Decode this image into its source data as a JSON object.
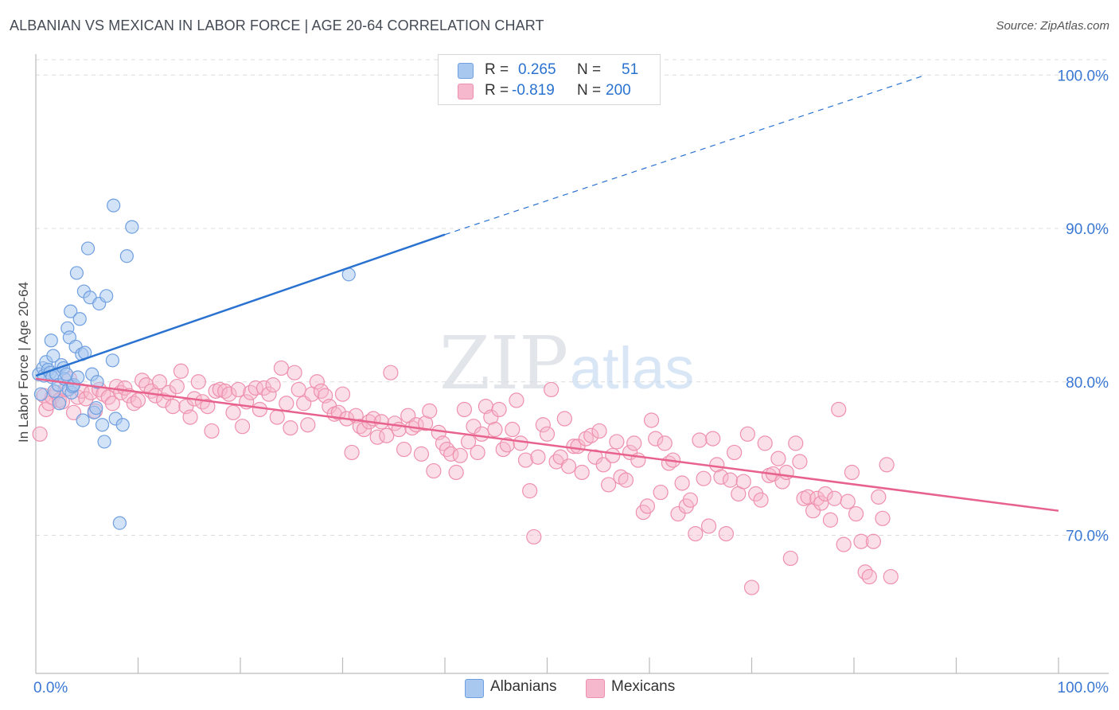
{
  "title": "ALBANIAN VS MEXICAN IN LABOR FORCE | AGE 20-64 CORRELATION CHART",
  "source": "Source: ZipAtlas.com",
  "watermark": {
    "zip": "ZIP",
    "atlas": "atlas"
  },
  "legend": {
    "r_label": "R =",
    "n_label": "N =",
    "albanians": {
      "r": "0.265",
      "n": "51"
    },
    "mexicans": {
      "r": "-0.819",
      "n": "200"
    }
  },
  "colors": {
    "albanian_fill": "#a8c8f0",
    "albanian_stroke": "#6f9fe0",
    "albanian_line": "#2a72d0",
    "mexican_fill": "#f6b8cc",
    "mexican_stroke": "#ee90ae",
    "mexican_line": "#e8628e",
    "axis_tick_text": "#3a78d4"
  },
  "chart_data": {
    "type": "scatter",
    "title": "ALBANIAN VS MEXICAN IN LABOR FORCE | AGE 20-64 CORRELATION CHART",
    "xlabel": "",
    "ylabel": "In Labor Force | Age 20-64",
    "xlim": [
      0,
      100
    ],
    "ylim": [
      61,
      101
    ],
    "x_tick_labels": [
      "0.0%",
      "100.0%"
    ],
    "y_ticks": [
      70,
      80,
      90,
      100
    ],
    "y_tick_labels": [
      "70.0%",
      "80.0%",
      "90.0%",
      "100.0%"
    ],
    "grid": "horizontal dashed",
    "legend_position": "bottom-center",
    "series": [
      {
        "name": "Albanians",
        "R": 0.265,
        "N": 51,
        "trend": {
          "x": [
            0,
            40
          ],
          "y": [
            80.4,
            89.6
          ],
          "dashed_to": [
            87,
            100
          ]
        },
        "points": [
          [
            0.3,
            80.5
          ],
          [
            0.5,
            79.2
          ],
          [
            0.7,
            80.9
          ],
          [
            0.8,
            80.4
          ],
          [
            1.0,
            81.3
          ],
          [
            1.2,
            80.8
          ],
          [
            1.4,
            80.6
          ],
          [
            1.5,
            82.7
          ],
          [
            1.6,
            80.3
          ],
          [
            1.7,
            81.7
          ],
          [
            1.8,
            79.4
          ],
          [
            2.0,
            80.5
          ],
          [
            2.2,
            79.8
          ],
          [
            2.3,
            78.6
          ],
          [
            2.5,
            81.1
          ],
          [
            2.7,
            80.9
          ],
          [
            2.8,
            80.2
          ],
          [
            3.0,
            80.5
          ],
          [
            3.1,
            83.5
          ],
          [
            3.2,
            79.5
          ],
          [
            3.3,
            82.9
          ],
          [
            3.4,
            84.6
          ],
          [
            3.5,
            79.3
          ],
          [
            3.6,
            79.7
          ],
          [
            3.7,
            79.8
          ],
          [
            3.9,
            82.3
          ],
          [
            4.0,
            87.1
          ],
          [
            4.1,
            80.3
          ],
          [
            4.3,
            84.1
          ],
          [
            4.5,
            81.8
          ],
          [
            4.6,
            77.5
          ],
          [
            4.7,
            85.9
          ],
          [
            4.8,
            81.9
          ],
          [
            5.1,
            88.7
          ],
          [
            5.3,
            85.5
          ],
          [
            5.5,
            80.5
          ],
          [
            5.7,
            78.0
          ],
          [
            5.9,
            78.3
          ],
          [
            6.0,
            80.0
          ],
          [
            6.2,
            85.1
          ],
          [
            6.5,
            77.2
          ],
          [
            6.7,
            76.1
          ],
          [
            6.9,
            85.6
          ],
          [
            7.5,
            81.4
          ],
          [
            7.6,
            91.5
          ],
          [
            7.8,
            77.6
          ],
          [
            8.2,
            70.8
          ],
          [
            8.5,
            77.2
          ],
          [
            8.9,
            88.2
          ],
          [
            9.4,
            90.1
          ],
          [
            30.6,
            87.0
          ]
        ]
      },
      {
        "name": "Mexicans",
        "R": -0.819,
        "N": 200,
        "trend": {
          "x": [
            0,
            100
          ],
          "y": [
            80.2,
            71.6
          ]
        },
        "points": [
          [
            0.4,
            76.6
          ],
          [
            0.8,
            79.1
          ],
          [
            1.0,
            78.2
          ],
          [
            1.3,
            78.6
          ],
          [
            1.6,
            79.0
          ],
          [
            2.0,
            79.3
          ],
          [
            2.3,
            78.8
          ],
          [
            2.6,
            78.7
          ],
          [
            2.9,
            79.5
          ],
          [
            3.3,
            80.2
          ],
          [
            3.7,
            78.0
          ],
          [
            4.1,
            79.0
          ],
          [
            4.5,
            79.4
          ],
          [
            4.9,
            78.9
          ],
          [
            5.4,
            79.3
          ],
          [
            5.8,
            78.1
          ],
          [
            6.2,
            79.5
          ],
          [
            6.6,
            79.2
          ],
          [
            7.1,
            79.0
          ],
          [
            7.5,
            78.6
          ],
          [
            7.9,
            79.7
          ],
          [
            8.3,
            79.3
          ],
          [
            8.7,
            79.6
          ],
          [
            9.1,
            79.1
          ],
          [
            9.6,
            78.6
          ],
          [
            10.0,
            78.8
          ],
          [
            10.4,
            80.1
          ],
          [
            10.8,
            79.8
          ],
          [
            11.3,
            79.4
          ],
          [
            11.7,
            79.1
          ],
          [
            12.1,
            80.0
          ],
          [
            12.5,
            78.8
          ],
          [
            13.0,
            79.3
          ],
          [
            13.4,
            78.4
          ],
          [
            13.8,
            79.7
          ],
          [
            14.2,
            80.7
          ],
          [
            14.7,
            78.4
          ],
          [
            15.1,
            77.7
          ],
          [
            15.5,
            78.9
          ],
          [
            15.9,
            80.0
          ],
          [
            16.3,
            78.7
          ],
          [
            16.8,
            78.4
          ],
          [
            17.2,
            76.8
          ],
          [
            17.6,
            79.4
          ],
          [
            18.0,
            79.5
          ],
          [
            18.5,
            79.4
          ],
          [
            18.9,
            79.2
          ],
          [
            19.3,
            78.0
          ],
          [
            19.8,
            79.5
          ],
          [
            20.2,
            77.1
          ],
          [
            20.6,
            78.7
          ],
          [
            21.0,
            79.3
          ],
          [
            21.5,
            79.6
          ],
          [
            21.9,
            78.2
          ],
          [
            22.3,
            79.6
          ],
          [
            22.8,
            79.2
          ],
          [
            23.2,
            79.8
          ],
          [
            23.6,
            77.7
          ],
          [
            24.0,
            80.9
          ],
          [
            24.5,
            78.6
          ],
          [
            24.9,
            77.0
          ],
          [
            25.3,
            80.6
          ],
          [
            25.7,
            79.5
          ],
          [
            26.2,
            78.6
          ],
          [
            26.6,
            77.2
          ],
          [
            27.0,
            79.2
          ],
          [
            27.5,
            80.0
          ],
          [
            27.9,
            79.4
          ],
          [
            28.3,
            79.1
          ],
          [
            28.7,
            78.4
          ],
          [
            29.2,
            77.9
          ],
          [
            29.6,
            78.0
          ],
          [
            30.0,
            79.2
          ],
          [
            30.4,
            77.6
          ],
          [
            30.9,
            75.4
          ],
          [
            31.3,
            77.8
          ],
          [
            31.7,
            77.1
          ],
          [
            32.1,
            76.9
          ],
          [
            32.6,
            77.4
          ],
          [
            33.0,
            77.6
          ],
          [
            33.4,
            76.4
          ],
          [
            33.8,
            77.4
          ],
          [
            34.3,
            76.5
          ],
          [
            34.7,
            80.6
          ],
          [
            35.1,
            77.3
          ],
          [
            35.5,
            76.9
          ],
          [
            36.0,
            75.6
          ],
          [
            36.4,
            77.8
          ],
          [
            36.8,
            77.0
          ],
          [
            37.2,
            77.2
          ],
          [
            37.7,
            75.3
          ],
          [
            38.1,
            77.3
          ],
          [
            38.5,
            78.1
          ],
          [
            38.9,
            74.2
          ],
          [
            39.4,
            76.7
          ],
          [
            39.8,
            76.0
          ],
          [
            40.2,
            75.6
          ],
          [
            40.6,
            75.3
          ],
          [
            41.1,
            74.1
          ],
          [
            41.5,
            75.2
          ],
          [
            41.9,
            78.2
          ],
          [
            42.3,
            76.1
          ],
          [
            42.8,
            77.1
          ],
          [
            43.2,
            75.4
          ],
          [
            43.6,
            76.6
          ],
          [
            44.0,
            78.4
          ],
          [
            44.5,
            77.7
          ],
          [
            44.9,
            76.9
          ],
          [
            45.3,
            78.2
          ],
          [
            45.7,
            75.6
          ],
          [
            46.1,
            75.9
          ],
          [
            46.6,
            76.9
          ],
          [
            47.0,
            78.8
          ],
          [
            47.4,
            76.0
          ],
          [
            47.9,
            74.9
          ],
          [
            48.3,
            72.9
          ],
          [
            48.7,
            69.9
          ],
          [
            49.1,
            75.1
          ],
          [
            49.6,
            77.2
          ],
          [
            50.0,
            76.6
          ],
          [
            50.4,
            79.5
          ],
          [
            50.9,
            74.8
          ],
          [
            51.3,
            75.1
          ],
          [
            51.7,
            77.6
          ],
          [
            52.1,
            74.5
          ],
          [
            52.6,
            75.8
          ],
          [
            53.0,
            75.8
          ],
          [
            53.4,
            74.1
          ],
          [
            53.8,
            76.3
          ],
          [
            54.3,
            76.5
          ],
          [
            54.7,
            75.1
          ],
          [
            55.1,
            76.8
          ],
          [
            55.5,
            74.6
          ],
          [
            56.0,
            73.3
          ],
          [
            56.4,
            75.2
          ],
          [
            56.8,
            76.1
          ],
          [
            57.2,
            73.8
          ],
          [
            57.7,
            73.6
          ],
          [
            58.1,
            75.4
          ],
          [
            58.5,
            76.0
          ],
          [
            58.9,
            74.9
          ],
          [
            59.4,
            71.5
          ],
          [
            59.8,
            71.9
          ],
          [
            60.2,
            77.5
          ],
          [
            60.6,
            76.3
          ],
          [
            61.1,
            72.8
          ],
          [
            61.5,
            76.0
          ],
          [
            61.9,
            74.7
          ],
          [
            62.3,
            74.9
          ],
          [
            62.8,
            71.4
          ],
          [
            63.2,
            73.4
          ],
          [
            63.6,
            71.9
          ],
          [
            64.0,
            72.3
          ],
          [
            64.5,
            70.1
          ],
          [
            64.9,
            76.2
          ],
          [
            65.3,
            73.7
          ],
          [
            65.8,
            70.6
          ],
          [
            66.2,
            76.3
          ],
          [
            66.6,
            74.6
          ],
          [
            67.0,
            73.8
          ],
          [
            67.5,
            70.1
          ],
          [
            67.9,
            73.6
          ],
          [
            68.3,
            75.4
          ],
          [
            68.7,
            72.7
          ],
          [
            69.2,
            73.5
          ],
          [
            69.6,
            76.6
          ],
          [
            70.0,
            66.6
          ],
          [
            70.4,
            72.7
          ],
          [
            70.9,
            72.3
          ],
          [
            71.3,
            76.0
          ],
          [
            71.7,
            73.9
          ],
          [
            72.1,
            74.0
          ],
          [
            72.6,
            75.0
          ],
          [
            73.0,
            73.5
          ],
          [
            73.4,
            74.1
          ],
          [
            73.8,
            68.5
          ],
          [
            74.3,
            76.0
          ],
          [
            74.7,
            74.8
          ],
          [
            75.1,
            72.4
          ],
          [
            75.5,
            72.5
          ],
          [
            76.0,
            71.6
          ],
          [
            76.4,
            72.4
          ],
          [
            76.8,
            72.1
          ],
          [
            77.2,
            72.7
          ],
          [
            77.7,
            71.0
          ],
          [
            78.1,
            72.4
          ],
          [
            78.5,
            78.2
          ],
          [
            79.0,
            69.4
          ],
          [
            79.4,
            72.2
          ],
          [
            79.8,
            74.1
          ],
          [
            80.2,
            71.4
          ],
          [
            80.7,
            69.6
          ],
          [
            81.1,
            67.6
          ],
          [
            81.5,
            67.3
          ],
          [
            81.9,
            69.6
          ],
          [
            82.4,
            72.5
          ],
          [
            82.8,
            71.1
          ],
          [
            83.2,
            74.6
          ],
          [
            83.6,
            67.3
          ]
        ]
      }
    ]
  }
}
